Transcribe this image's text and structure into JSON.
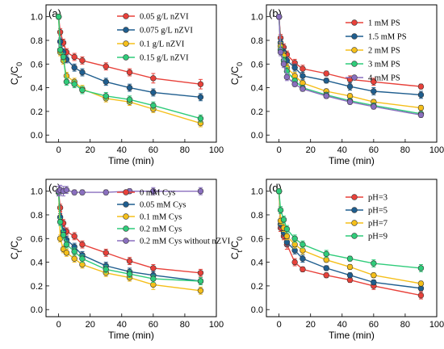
{
  "chart_data": [
    {
      "type": "line",
      "panel_label": "(a)",
      "xlabel": "Time (min)",
      "ylabel": "Ct/C0",
      "xlim": [
        -8,
        100
      ],
      "ylim": [
        -0.06,
        1.1
      ],
      "xticks": [
        0,
        20,
        40,
        60,
        80,
        100
      ],
      "yticks": [
        0.0,
        0.2,
        0.4,
        0.6,
        0.8,
        1.0
      ],
      "legend_position": "top-right",
      "x": [
        0,
        1,
        3,
        5,
        10,
        15,
        30,
        45,
        60,
        90
      ],
      "series": [
        {
          "name": "0.05 g/L nZVI",
          "color": "#e8413a",
          "values": [
            1.0,
            0.87,
            0.78,
            0.7,
            0.66,
            0.63,
            0.58,
            0.53,
            0.48,
            0.43
          ],
          "errors": [
            0.02,
            0.03,
            0.03,
            0.03,
            0.03,
            0.03,
            0.03,
            0.03,
            0.04,
            0.04
          ]
        },
        {
          "name": "0.075 g/L nZVI",
          "color": "#1f5e8f",
          "values": [
            1.0,
            0.79,
            0.7,
            0.64,
            0.57,
            0.53,
            0.45,
            0.4,
            0.36,
            0.32
          ],
          "errors": [
            0.02,
            0.03,
            0.03,
            0.03,
            0.03,
            0.03,
            0.03,
            0.03,
            0.03,
            0.03
          ]
        },
        {
          "name": "0.1 g/L nZVI",
          "color": "#f5bf1a",
          "values": [
            1.0,
            0.7,
            0.63,
            0.5,
            0.45,
            0.39,
            0.31,
            0.28,
            0.22,
            0.1
          ],
          "errors": [
            0.02,
            0.03,
            0.03,
            0.03,
            0.03,
            0.03,
            0.03,
            0.03,
            0.03,
            0.03
          ]
        },
        {
          "name": "0.15 g/L nZVI",
          "color": "#2fcc7a",
          "values": [
            1.0,
            0.72,
            0.66,
            0.45,
            0.43,
            0.38,
            0.33,
            0.3,
            0.25,
            0.14
          ],
          "errors": [
            0.02,
            0.03,
            0.03,
            0.03,
            0.03,
            0.03,
            0.03,
            0.03,
            0.03,
            0.03
          ]
        }
      ]
    },
    {
      "type": "line",
      "panel_label": "(b)",
      "xlabel": "Time (min)",
      "ylabel": "Ct/C0",
      "xlim": [
        -8,
        100
      ],
      "ylim": [
        -0.06,
        1.1
      ],
      "xticks": [
        0,
        20,
        40,
        60,
        80,
        100
      ],
      "yticks": [
        0.0,
        0.2,
        0.4,
        0.6,
        0.8,
        1.0
      ],
      "legend_position": "top-right",
      "x": [
        0,
        1,
        3,
        5,
        10,
        15,
        30,
        45,
        60,
        90
      ],
      "series": [
        {
          "name": "1 mM PS",
          "color": "#e8413a",
          "values": [
            1.0,
            0.82,
            0.74,
            0.68,
            0.61,
            0.56,
            0.52,
            0.47,
            0.45,
            0.41
          ],
          "errors": [
            0.02,
            0.03,
            0.03,
            0.03,
            0.03,
            0.03,
            0.02,
            0.03,
            0.03,
            0.02
          ]
        },
        {
          "name": "1.5 mM PS",
          "color": "#1f5e8f",
          "values": [
            1.0,
            0.78,
            0.7,
            0.63,
            0.57,
            0.5,
            0.46,
            0.41,
            0.37,
            0.34
          ],
          "errors": [
            0.02,
            0.03,
            0.03,
            0.03,
            0.03,
            0.03,
            0.02,
            0.03,
            0.03,
            0.03
          ]
        },
        {
          "name": "2 mM PS",
          "color": "#f5bf1a",
          "values": [
            1.0,
            0.75,
            0.67,
            0.57,
            0.5,
            0.44,
            0.37,
            0.33,
            0.28,
            0.23
          ],
          "errors": [
            0.02,
            0.03,
            0.03,
            0.03,
            0.03,
            0.02,
            0.02,
            0.02,
            0.02,
            0.02
          ]
        },
        {
          "name": "3 mM PS",
          "color": "#2fcc7a",
          "values": [
            1.0,
            0.72,
            0.63,
            0.54,
            0.46,
            0.4,
            0.34,
            0.29,
            0.25,
            0.18
          ],
          "errors": [
            0.02,
            0.03,
            0.03,
            0.03,
            0.02,
            0.02,
            0.02,
            0.02,
            0.02,
            0.02
          ]
        },
        {
          "name": "4 mM PS",
          "color": "#8a6fbf",
          "values": [
            1.0,
            0.7,
            0.6,
            0.49,
            0.43,
            0.39,
            0.33,
            0.28,
            0.24,
            0.17
          ],
          "errors": [
            0.02,
            0.03,
            0.03,
            0.03,
            0.02,
            0.02,
            0.02,
            0.02,
            0.02,
            0.02
          ]
        }
      ]
    },
    {
      "type": "line",
      "panel_label": "(c)",
      "xlabel": "Time (min)",
      "ylabel": "Ct/C0",
      "xlim": [
        -8,
        100
      ],
      "ylim": [
        -0.06,
        1.1
      ],
      "xticks": [
        0,
        20,
        40,
        60,
        80,
        100
      ],
      "yticks": [
        0.0,
        0.2,
        0.4,
        0.6,
        0.8,
        1.0
      ],
      "legend_position": "top-right",
      "x": [
        0,
        1,
        3,
        5,
        10,
        15,
        30,
        45,
        60,
        90
      ],
      "series": [
        {
          "name": "0 mM Cys",
          "color": "#e8413a",
          "values": [
            0.99,
            0.86,
            0.73,
            0.66,
            0.62,
            0.55,
            0.48,
            0.41,
            0.35,
            0.31
          ],
          "errors": [
            0.03,
            0.03,
            0.03,
            0.03,
            0.03,
            0.03,
            0.03,
            0.03,
            0.03,
            0.03
          ]
        },
        {
          "name": "0.05 mM Cys",
          "color": "#1f5e8f",
          "values": [
            0.99,
            0.78,
            0.66,
            0.59,
            0.53,
            0.46,
            0.37,
            0.32,
            0.29,
            0.24
          ],
          "errors": [
            0.03,
            0.03,
            0.03,
            0.03,
            0.03,
            0.03,
            0.03,
            0.03,
            0.03,
            0.03
          ]
        },
        {
          "name": "0.1 mM Cys",
          "color": "#f5bf1a",
          "values": [
            0.99,
            0.6,
            0.51,
            0.48,
            0.43,
            0.38,
            0.31,
            0.27,
            0.21,
            0.16
          ],
          "errors": [
            0.03,
            0.03,
            0.03,
            0.03,
            0.03,
            0.03,
            0.03,
            0.03,
            0.04,
            0.03
          ]
        },
        {
          "name": "0.2 mM Cys",
          "color": "#2fcc7a",
          "values": [
            0.99,
            0.74,
            0.63,
            0.55,
            0.49,
            0.43,
            0.34,
            0.3,
            0.26,
            0.24
          ],
          "errors": [
            0.03,
            0.03,
            0.03,
            0.03,
            0.03,
            0.03,
            0.03,
            0.03,
            0.03,
            0.03
          ]
        },
        {
          "name": "0.2 mM Cys without nZVI",
          "color": "#8a6fbf",
          "values": [
            1.0,
            1.01,
            1.0,
            1.01,
            0.99,
            0.99,
            0.99,
            1.0,
            1.0,
            1.0
          ],
          "errors": [
            0.04,
            0.04,
            0.04,
            0.03,
            0.02,
            0.02,
            0.02,
            0.02,
            0.03,
            0.03
          ]
        }
      ]
    },
    {
      "type": "line",
      "panel_label": "(d)",
      "xlabel": "Time (min)",
      "ylabel": "Ct/C0",
      "xlim": [
        -8,
        100
      ],
      "ylim": [
        -0.06,
        1.1
      ],
      "xticks": [
        0,
        20,
        40,
        60,
        80,
        100
      ],
      "yticks": [
        0.0,
        0.2,
        0.4,
        0.6,
        0.8,
        1.0
      ],
      "legend_position": "top-right",
      "x": [
        0,
        1,
        3,
        5,
        10,
        15,
        30,
        45,
        60,
        90
      ],
      "series": [
        {
          "name": "pH=3",
          "color": "#e8413a",
          "values": [
            1.0,
            0.69,
            0.62,
            0.55,
            0.4,
            0.34,
            0.29,
            0.25,
            0.2,
            0.12
          ],
          "errors": [
            0.02,
            0.03,
            0.03,
            0.04,
            0.03,
            0.02,
            0.02,
            0.02,
            0.03,
            0.03
          ]
        },
        {
          "name": "pH=5",
          "color": "#1f5e8f",
          "values": [
            1.0,
            0.72,
            0.65,
            0.57,
            0.5,
            0.43,
            0.35,
            0.29,
            0.23,
            0.18
          ],
          "errors": [
            0.02,
            0.03,
            0.03,
            0.03,
            0.03,
            0.03,
            0.02,
            0.02,
            0.02,
            0.02
          ]
        },
        {
          "name": "pH=7",
          "color": "#f5bf1a",
          "values": [
            1.0,
            0.75,
            0.69,
            0.62,
            0.55,
            0.5,
            0.42,
            0.36,
            0.29,
            0.22
          ],
          "errors": [
            0.02,
            0.03,
            0.03,
            0.03,
            0.03,
            0.03,
            0.02,
            0.02,
            0.02,
            0.02
          ]
        },
        {
          "name": "pH=9",
          "color": "#2fcc7a",
          "values": [
            1.0,
            0.84,
            0.76,
            0.68,
            0.6,
            0.55,
            0.47,
            0.43,
            0.39,
            0.35
          ],
          "errors": [
            0.02,
            0.03,
            0.03,
            0.03,
            0.03,
            0.03,
            0.03,
            0.02,
            0.03,
            0.03
          ]
        }
      ]
    }
  ]
}
